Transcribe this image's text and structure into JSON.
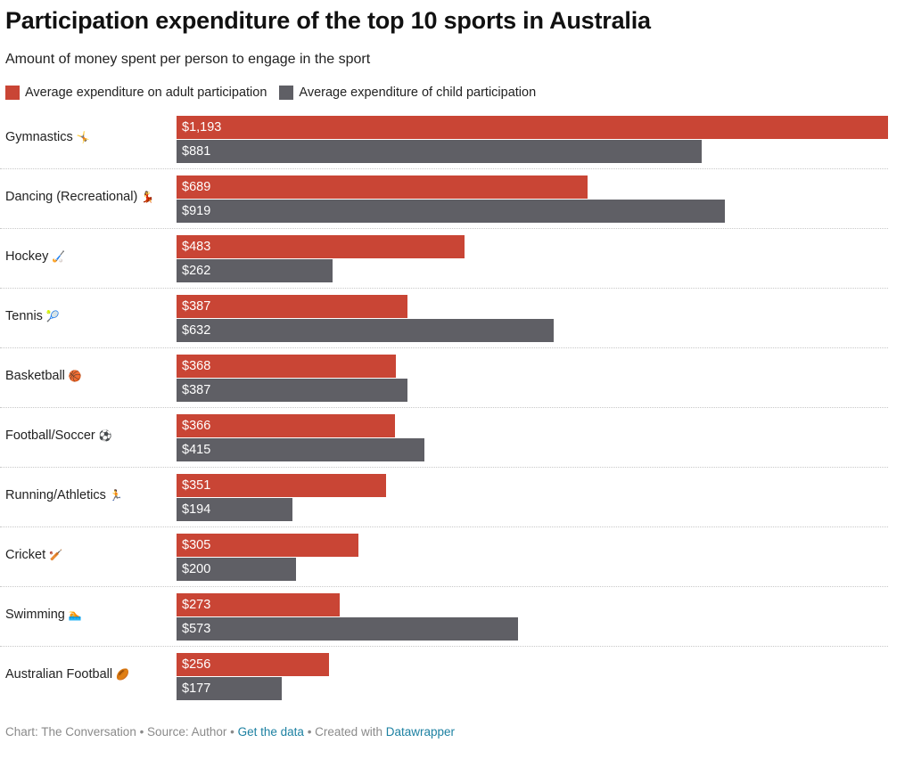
{
  "chart_data": {
    "type": "bar",
    "orientation": "horizontal",
    "title": "Participation expenditure of the top 10 sports in Australia",
    "subtitle": "Amount of money spent per person to engage in the sport",
    "categories": [
      "Gymnastics",
      "Dancing (Recreational)",
      "Hockey",
      "Tennis",
      "Basketball",
      "Football/Soccer",
      "Running/Athletics",
      "Cricket",
      "Swimming",
      "Australian Football"
    ],
    "category_emojis": [
      "🤸",
      "💃",
      "🏑",
      "🎾",
      "🏀",
      "⚽",
      "🏃",
      "🏏",
      "🏊",
      "🏉"
    ],
    "series": [
      {
        "name": "Average expenditure on adult participation",
        "color": "#c94535",
        "values": [
          1193,
          689,
          483,
          387,
          368,
          366,
          351,
          305,
          273,
          256
        ],
        "labels": [
          "$1,193",
          "$689",
          "$483",
          "$387",
          "$368",
          "$366",
          "$351",
          "$305",
          "$273",
          "$256"
        ]
      },
      {
        "name": "Average expenditure of child participation",
        "color": "#5f5f65",
        "values": [
          881,
          919,
          262,
          632,
          387,
          415,
          194,
          200,
          573,
          177
        ],
        "labels": [
          "$881",
          "$919",
          "$262",
          "$632",
          "$387",
          "$415",
          "$194",
          "$200",
          "$573",
          "$177"
        ]
      }
    ],
    "xlim": [
      0,
      1193
    ],
    "grid": false,
    "legend": "top-left"
  },
  "footer": {
    "credit": "Chart: The Conversation • Source: Author •",
    "data_link": "Get the data",
    "created": "• Created with",
    "tool_link": "Datawrapper"
  }
}
